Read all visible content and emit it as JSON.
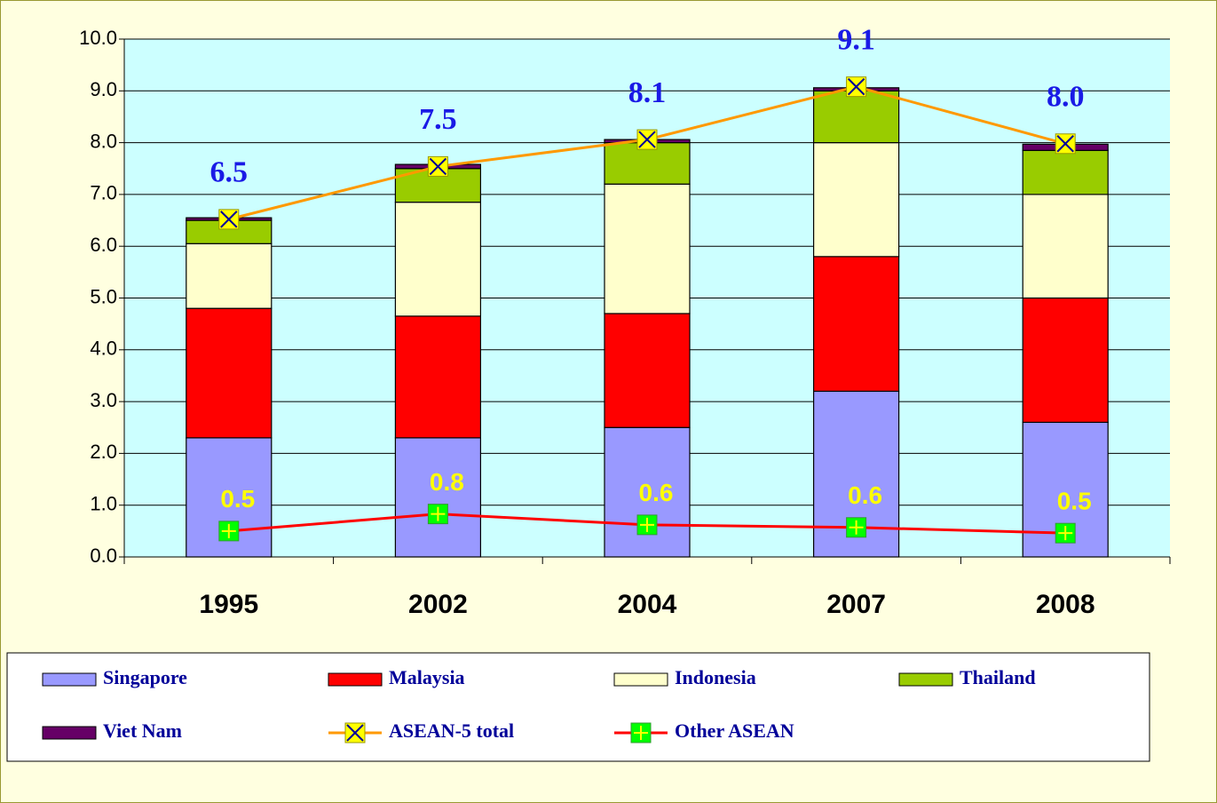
{
  "chart_data": {
    "type": "bar",
    "stacked": true,
    "categories": [
      "1995",
      "2002",
      "2004",
      "2007",
      "2008"
    ],
    "series": [
      {
        "name": "Singapore",
        "type": "bar",
        "color": "#9999ff",
        "values": [
          2.3,
          2.3,
          2.5,
          3.2,
          2.6
        ]
      },
      {
        "name": "Malaysia",
        "type": "bar",
        "color": "#ff0000",
        "values": [
          2.5,
          2.35,
          2.2,
          2.6,
          2.4
        ]
      },
      {
        "name": "Indonesia",
        "type": "bar",
        "color": "#ffffcc",
        "values": [
          1.25,
          2.2,
          2.5,
          2.2,
          2.0
        ]
      },
      {
        "name": "Thailand",
        "type": "bar",
        "color": "#99cc00",
        "values": [
          0.45,
          0.65,
          0.8,
          1.0,
          0.85
        ]
      },
      {
        "name": "Viet Nam",
        "type": "bar",
        "color": "#660066",
        "values": [
          0.05,
          0.08,
          0.06,
          0.06,
          0.12
        ]
      },
      {
        "name": "ASEAN-5 total",
        "type": "line",
        "color": "#ff9900",
        "marker_color": "#ffff00",
        "values": [
          6.52,
          7.54,
          8.06,
          9.08,
          7.98
        ],
        "value_labels": [
          "6.5",
          "7.5",
          "8.1",
          "9.1",
          "8.0"
        ]
      },
      {
        "name": "Other ASEAN",
        "type": "line",
        "color": "#ff0000",
        "marker_color": "#00ff00",
        "values": [
          0.5,
          0.83,
          0.62,
          0.57,
          0.46
        ],
        "value_labels": [
          "0.5",
          "0.8",
          "0.6",
          "0.6",
          "0.5"
        ]
      }
    ],
    "ylim": [
      0,
      10
    ],
    "yticks": [
      {
        "value": 0,
        "label": "0.0"
      },
      {
        "value": 1,
        "label": "1.0"
      },
      {
        "value": 2,
        "label": "2.0"
      },
      {
        "value": 3,
        "label": "3.0"
      },
      {
        "value": 4,
        "label": "4.0"
      },
      {
        "value": 5,
        "label": "5.0"
      },
      {
        "value": 6,
        "label": "6.0"
      },
      {
        "value": 7,
        "label": "7.0"
      },
      {
        "value": 8,
        "label": "8.0"
      },
      {
        "value": 9,
        "label": "9.0"
      },
      {
        "value": 10,
        "label": "10.0"
      }
    ],
    "grid": true,
    "legend": "bottom"
  }
}
